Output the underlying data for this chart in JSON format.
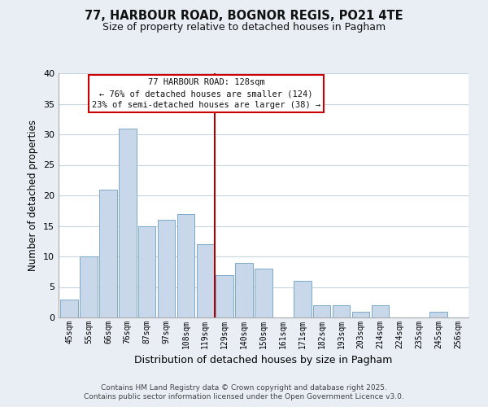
{
  "title": "77, HARBOUR ROAD, BOGNOR REGIS, PO21 4TE",
  "subtitle": "Size of property relative to detached houses in Pagham",
  "xlabel": "Distribution of detached houses by size in Pagham",
  "ylabel": "Number of detached properties",
  "bin_labels": [
    "45sqm",
    "55sqm",
    "66sqm",
    "76sqm",
    "87sqm",
    "97sqm",
    "108sqm",
    "119sqm",
    "129sqm",
    "140sqm",
    "150sqm",
    "161sqm",
    "171sqm",
    "182sqm",
    "193sqm",
    "203sqm",
    "214sqm",
    "224sqm",
    "235sqm",
    "245sqm",
    "256sqm"
  ],
  "bar_heights": [
    3,
    10,
    21,
    31,
    15,
    16,
    17,
    12,
    7,
    9,
    8,
    0,
    6,
    2,
    2,
    1,
    2,
    0,
    0,
    1,
    0
  ],
  "bar_color": "#c8d8ea",
  "bar_edge_color": "#7aaac8",
  "vline_color": "#aa0000",
  "ylim": [
    0,
    40
  ],
  "yticks": [
    0,
    5,
    10,
    15,
    20,
    25,
    30,
    35,
    40
  ],
  "annotation_title": "77 HARBOUR ROAD: 128sqm",
  "annotation_line1": "← 76% of detached houses are smaller (124)",
  "annotation_line2": "23% of semi-detached houses are larger (38) →",
  "annotation_box_color": "#ffffff",
  "annotation_box_edge": "#cc0000",
  "footer1": "Contains HM Land Registry data © Crown copyright and database right 2025.",
  "footer2": "Contains public sector information licensed under the Open Government Licence v3.0.",
  "bg_color": "#e8eef4",
  "plot_bg_color": "#ffffff",
  "grid_color": "#c8d4dc"
}
